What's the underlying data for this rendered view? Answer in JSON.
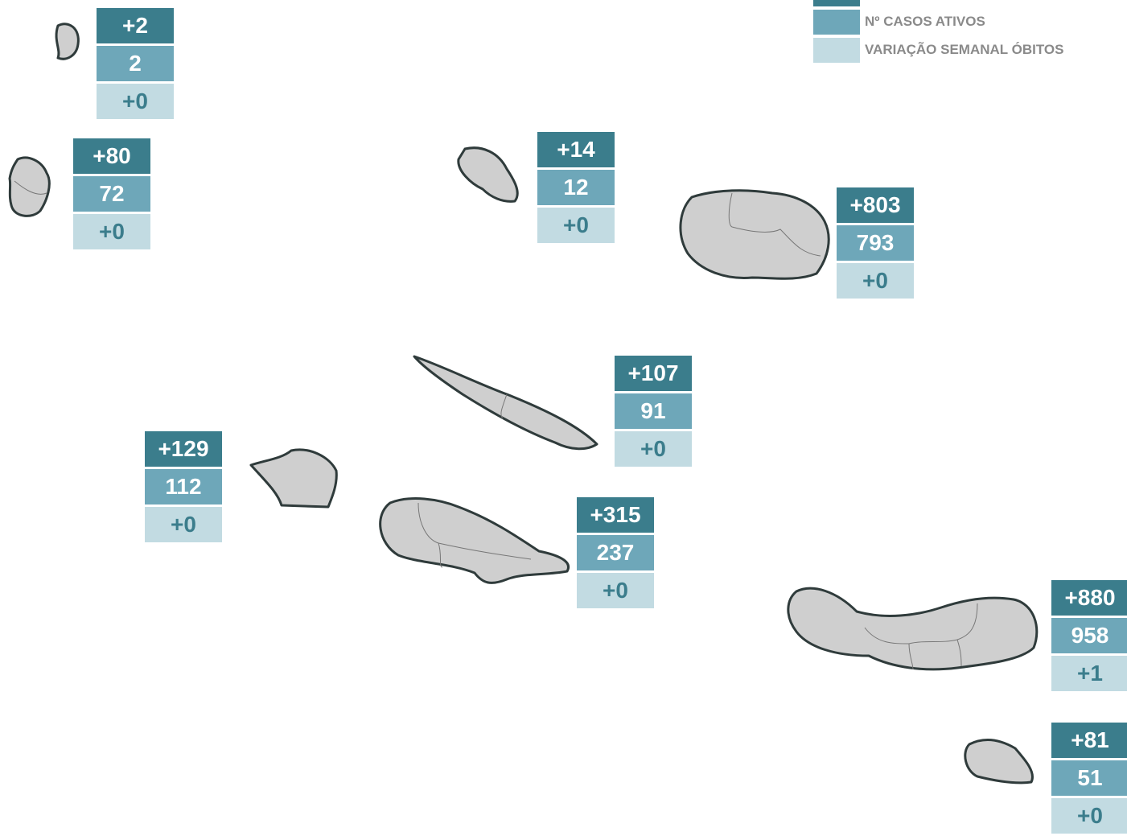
{
  "legend": [
    "Nº CASOS ATIVOS",
    "VARIAÇÃO SEMANAL ÓBITOS"
  ],
  "islands": [
    {
      "values": [
        "+2",
        "2",
        "+0"
      ]
    },
    {
      "values": [
        "+80",
        "72",
        "+0"
      ]
    },
    {
      "values": [
        "+14",
        "12",
        "+0"
      ]
    },
    {
      "values": [
        "+803",
        "793",
        "+0"
      ]
    },
    {
      "values": [
        "+107",
        "91",
        "+0"
      ]
    },
    {
      "values": [
        "+129",
        "112",
        "+0"
      ]
    },
    {
      "values": [
        "+315",
        "237",
        "+0"
      ]
    },
    {
      "values": [
        "+880",
        "958",
        "+1"
      ]
    },
    {
      "values": [
        "+81",
        "51",
        "+0"
      ]
    }
  ]
}
